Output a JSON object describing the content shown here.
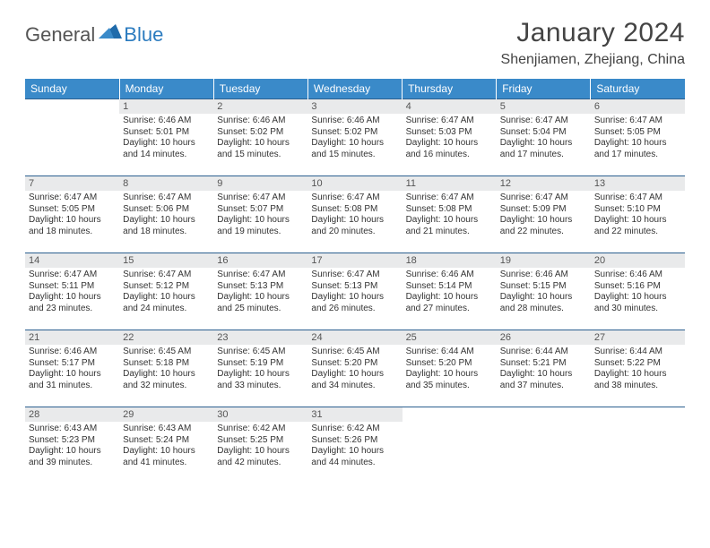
{
  "brand": {
    "part1": "General",
    "part2": "Blue"
  },
  "title": "January 2024",
  "location": "Shenjiamen, Zhejiang, China",
  "colors": {
    "header_bg": "#3a8ac9",
    "header_text": "#ffffff",
    "row_border": "#2b5f8f",
    "daynum_bg": "#e9eaeb",
    "text": "#333333",
    "brand_gray": "#555555",
    "brand_blue": "#2b7bbf",
    "background": "#ffffff"
  },
  "typography": {
    "title_fontsize": 30,
    "location_fontsize": 16,
    "weekday_fontsize": 12,
    "daynum_fontsize": 11,
    "body_fontsize": 10
  },
  "weekdays": [
    "Sunday",
    "Monday",
    "Tuesday",
    "Wednesday",
    "Thursday",
    "Friday",
    "Saturday"
  ],
  "weeks": [
    [
      {
        "day": "",
        "sunrise": "",
        "sunset": "",
        "daylight": ""
      },
      {
        "day": "1",
        "sunrise": "Sunrise: 6:46 AM",
        "sunset": "Sunset: 5:01 PM",
        "daylight": "Daylight: 10 hours and 14 minutes."
      },
      {
        "day": "2",
        "sunrise": "Sunrise: 6:46 AM",
        "sunset": "Sunset: 5:02 PM",
        "daylight": "Daylight: 10 hours and 15 minutes."
      },
      {
        "day": "3",
        "sunrise": "Sunrise: 6:46 AM",
        "sunset": "Sunset: 5:02 PM",
        "daylight": "Daylight: 10 hours and 15 minutes."
      },
      {
        "day": "4",
        "sunrise": "Sunrise: 6:47 AM",
        "sunset": "Sunset: 5:03 PM",
        "daylight": "Daylight: 10 hours and 16 minutes."
      },
      {
        "day": "5",
        "sunrise": "Sunrise: 6:47 AM",
        "sunset": "Sunset: 5:04 PM",
        "daylight": "Daylight: 10 hours and 17 minutes."
      },
      {
        "day": "6",
        "sunrise": "Sunrise: 6:47 AM",
        "sunset": "Sunset: 5:05 PM",
        "daylight": "Daylight: 10 hours and 17 minutes."
      }
    ],
    [
      {
        "day": "7",
        "sunrise": "Sunrise: 6:47 AM",
        "sunset": "Sunset: 5:05 PM",
        "daylight": "Daylight: 10 hours and 18 minutes."
      },
      {
        "day": "8",
        "sunrise": "Sunrise: 6:47 AM",
        "sunset": "Sunset: 5:06 PM",
        "daylight": "Daylight: 10 hours and 18 minutes."
      },
      {
        "day": "9",
        "sunrise": "Sunrise: 6:47 AM",
        "sunset": "Sunset: 5:07 PM",
        "daylight": "Daylight: 10 hours and 19 minutes."
      },
      {
        "day": "10",
        "sunrise": "Sunrise: 6:47 AM",
        "sunset": "Sunset: 5:08 PM",
        "daylight": "Daylight: 10 hours and 20 minutes."
      },
      {
        "day": "11",
        "sunrise": "Sunrise: 6:47 AM",
        "sunset": "Sunset: 5:08 PM",
        "daylight": "Daylight: 10 hours and 21 minutes."
      },
      {
        "day": "12",
        "sunrise": "Sunrise: 6:47 AM",
        "sunset": "Sunset: 5:09 PM",
        "daylight": "Daylight: 10 hours and 22 minutes."
      },
      {
        "day": "13",
        "sunrise": "Sunrise: 6:47 AM",
        "sunset": "Sunset: 5:10 PM",
        "daylight": "Daylight: 10 hours and 22 minutes."
      }
    ],
    [
      {
        "day": "14",
        "sunrise": "Sunrise: 6:47 AM",
        "sunset": "Sunset: 5:11 PM",
        "daylight": "Daylight: 10 hours and 23 minutes."
      },
      {
        "day": "15",
        "sunrise": "Sunrise: 6:47 AM",
        "sunset": "Sunset: 5:12 PM",
        "daylight": "Daylight: 10 hours and 24 minutes."
      },
      {
        "day": "16",
        "sunrise": "Sunrise: 6:47 AM",
        "sunset": "Sunset: 5:13 PM",
        "daylight": "Daylight: 10 hours and 25 minutes."
      },
      {
        "day": "17",
        "sunrise": "Sunrise: 6:47 AM",
        "sunset": "Sunset: 5:13 PM",
        "daylight": "Daylight: 10 hours and 26 minutes."
      },
      {
        "day": "18",
        "sunrise": "Sunrise: 6:46 AM",
        "sunset": "Sunset: 5:14 PM",
        "daylight": "Daylight: 10 hours and 27 minutes."
      },
      {
        "day": "19",
        "sunrise": "Sunrise: 6:46 AM",
        "sunset": "Sunset: 5:15 PM",
        "daylight": "Daylight: 10 hours and 28 minutes."
      },
      {
        "day": "20",
        "sunrise": "Sunrise: 6:46 AM",
        "sunset": "Sunset: 5:16 PM",
        "daylight": "Daylight: 10 hours and 30 minutes."
      }
    ],
    [
      {
        "day": "21",
        "sunrise": "Sunrise: 6:46 AM",
        "sunset": "Sunset: 5:17 PM",
        "daylight": "Daylight: 10 hours and 31 minutes."
      },
      {
        "day": "22",
        "sunrise": "Sunrise: 6:45 AM",
        "sunset": "Sunset: 5:18 PM",
        "daylight": "Daylight: 10 hours and 32 minutes."
      },
      {
        "day": "23",
        "sunrise": "Sunrise: 6:45 AM",
        "sunset": "Sunset: 5:19 PM",
        "daylight": "Daylight: 10 hours and 33 minutes."
      },
      {
        "day": "24",
        "sunrise": "Sunrise: 6:45 AM",
        "sunset": "Sunset: 5:20 PM",
        "daylight": "Daylight: 10 hours and 34 minutes."
      },
      {
        "day": "25",
        "sunrise": "Sunrise: 6:44 AM",
        "sunset": "Sunset: 5:20 PM",
        "daylight": "Daylight: 10 hours and 35 minutes."
      },
      {
        "day": "26",
        "sunrise": "Sunrise: 6:44 AM",
        "sunset": "Sunset: 5:21 PM",
        "daylight": "Daylight: 10 hours and 37 minutes."
      },
      {
        "day": "27",
        "sunrise": "Sunrise: 6:44 AM",
        "sunset": "Sunset: 5:22 PM",
        "daylight": "Daylight: 10 hours and 38 minutes."
      }
    ],
    [
      {
        "day": "28",
        "sunrise": "Sunrise: 6:43 AM",
        "sunset": "Sunset: 5:23 PM",
        "daylight": "Daylight: 10 hours and 39 minutes."
      },
      {
        "day": "29",
        "sunrise": "Sunrise: 6:43 AM",
        "sunset": "Sunset: 5:24 PM",
        "daylight": "Daylight: 10 hours and 41 minutes."
      },
      {
        "day": "30",
        "sunrise": "Sunrise: 6:42 AM",
        "sunset": "Sunset: 5:25 PM",
        "daylight": "Daylight: 10 hours and 42 minutes."
      },
      {
        "day": "31",
        "sunrise": "Sunrise: 6:42 AM",
        "sunset": "Sunset: 5:26 PM",
        "daylight": "Daylight: 10 hours and 44 minutes."
      },
      {
        "day": "",
        "sunrise": "",
        "sunset": "",
        "daylight": ""
      },
      {
        "day": "",
        "sunrise": "",
        "sunset": "",
        "daylight": ""
      },
      {
        "day": "",
        "sunrise": "",
        "sunset": "",
        "daylight": ""
      }
    ]
  ]
}
